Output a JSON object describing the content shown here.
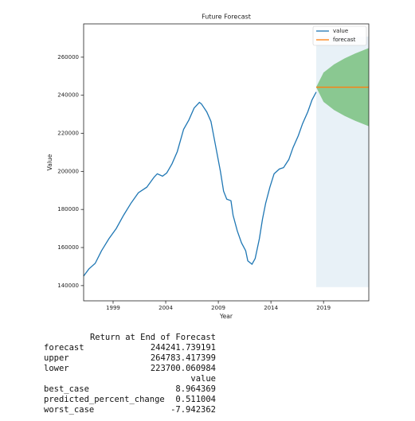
{
  "chart_data": {
    "type": "line",
    "title": "Future Forecast",
    "xlabel": "Year",
    "ylabel": "Value",
    "xlim": [
      1996.2,
      2023.3
    ],
    "ylim": [
      132000,
      277500
    ],
    "xticks": [
      1999,
      2004,
      2009,
      2014,
      2019
    ],
    "yticks": [
      140000,
      160000,
      180000,
      200000,
      220000,
      240000,
      260000
    ],
    "legend": "upper right",
    "series": [
      {
        "name": "value",
        "color": "#1f77b4",
        "x": [
          1996.2,
          1996.7,
          1997.3,
          1997.9,
          1998.6,
          1999.3,
          2000.0,
          2000.7,
          2001.4,
          2002.2,
          2002.9,
          2003.2,
          2003.7,
          2004.1,
          2004.6,
          2005.1,
          2005.7,
          2006.2,
          2006.7,
          2007.2,
          2007.4,
          2007.9,
          2008.3,
          2008.7,
          2009.2,
          2009.5,
          2009.8,
          2010.2,
          2010.4,
          2010.8,
          2011.2,
          2011.6,
          2011.8,
          2012.2,
          2012.5,
          2012.9,
          2013.2,
          2013.5,
          2013.9,
          2014.3,
          2014.8,
          2015.2,
          2015.7,
          2016.1,
          2016.6,
          2017.0,
          2017.5,
          2017.9,
          2018.3
        ],
        "values": [
          145000,
          148750,
          151700,
          158300,
          164600,
          170000,
          177000,
          183300,
          188750,
          191700,
          197000,
          198750,
          197500,
          199200,
          204000,
          210400,
          222100,
          227000,
          233300,
          236250,
          235400,
          231250,
          226250,
          214600,
          200000,
          189600,
          185400,
          184600,
          177000,
          168750,
          162500,
          158300,
          153000,
          151250,
          154200,
          164600,
          175000,
          183300,
          191700,
          198750,
          201250,
          202000,
          206250,
          212500,
          218750,
          225000,
          231250,
          237500,
          241700
        ]
      },
      {
        "name": "forecast",
        "color": "#ff7f0e",
        "x": [
          2018.3,
          2023.3
        ],
        "values": [
          244241,
          244241
        ]
      }
    ],
    "interval": {
      "color": "#2ca02c",
      "x": [
        2018.3,
        2019.0,
        2020.0,
        2021.0,
        2022.0,
        2023.3
      ],
      "upper": [
        244241,
        251930,
        256220,
        259340,
        261910,
        264783
      ],
      "lower": [
        244241,
        236550,
        232260,
        229140,
        226570,
        223700
      ]
    },
    "forecast_region": {
      "color": "#1f77b4",
      "x": [
        2018.3,
        2023.3
      ],
      "y": [
        139200,
        270800
      ]
    }
  },
  "output": {
    "table1": {
      "header": "Return at End of Forecast",
      "rows": [
        [
          "forecast",
          "244241.739191"
        ],
        [
          "upper",
          "264783.417399"
        ],
        [
          "lower",
          "223700.060984"
        ]
      ]
    },
    "table2": {
      "header": "value",
      "rows": [
        [
          "best_case",
          "8.964369"
        ],
        [
          "predicted_percent_change",
          "0.511004"
        ],
        [
          "worst_case",
          "-7.942362"
        ]
      ]
    }
  }
}
